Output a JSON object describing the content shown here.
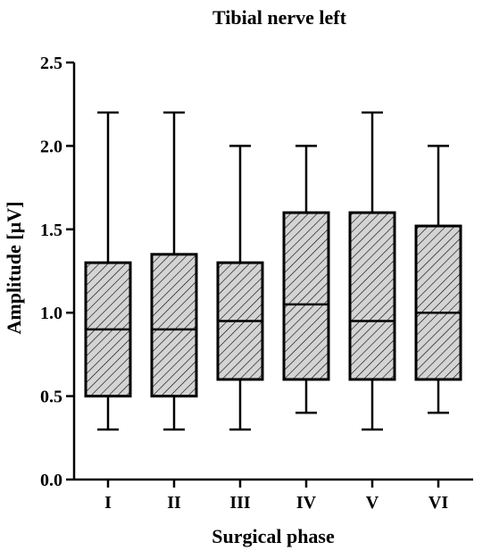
{
  "chart_data": {
    "type": "box",
    "title": "Tibial nerve left",
    "xlabel": "Surgical phase",
    "ylabel": "Amplitude [µV]",
    "ylim": [
      0,
      2.5
    ],
    "yticks": [
      "0.0",
      "0.5",
      "1.0",
      "1.5",
      "2.0",
      "2.5"
    ],
    "grid": false,
    "fill_pattern": "diagonal-hatch",
    "colors": {
      "box_fill": "#d4d4d4",
      "hatch": "#000000",
      "stroke": "#000000"
    },
    "categories": [
      "I",
      "II",
      "III",
      "IV",
      "V",
      "VI"
    ],
    "boxes": [
      {
        "min": 0.3,
        "q1": 0.5,
        "median": 0.9,
        "q3": 1.3,
        "max": 2.2
      },
      {
        "min": 0.3,
        "q1": 0.5,
        "median": 0.9,
        "q3": 1.35,
        "max": 2.2
      },
      {
        "min": 0.3,
        "q1": 0.6,
        "median": 0.95,
        "q3": 1.3,
        "max": 2.0
      },
      {
        "min": 0.4,
        "q1": 0.6,
        "median": 1.05,
        "q3": 1.6,
        "max": 2.0
      },
      {
        "min": 0.3,
        "q1": 0.6,
        "median": 0.95,
        "q3": 1.6,
        "max": 2.2
      },
      {
        "min": 0.4,
        "q1": 0.6,
        "median": 1.0,
        "q3": 1.52,
        "max": 2.0
      }
    ]
  }
}
